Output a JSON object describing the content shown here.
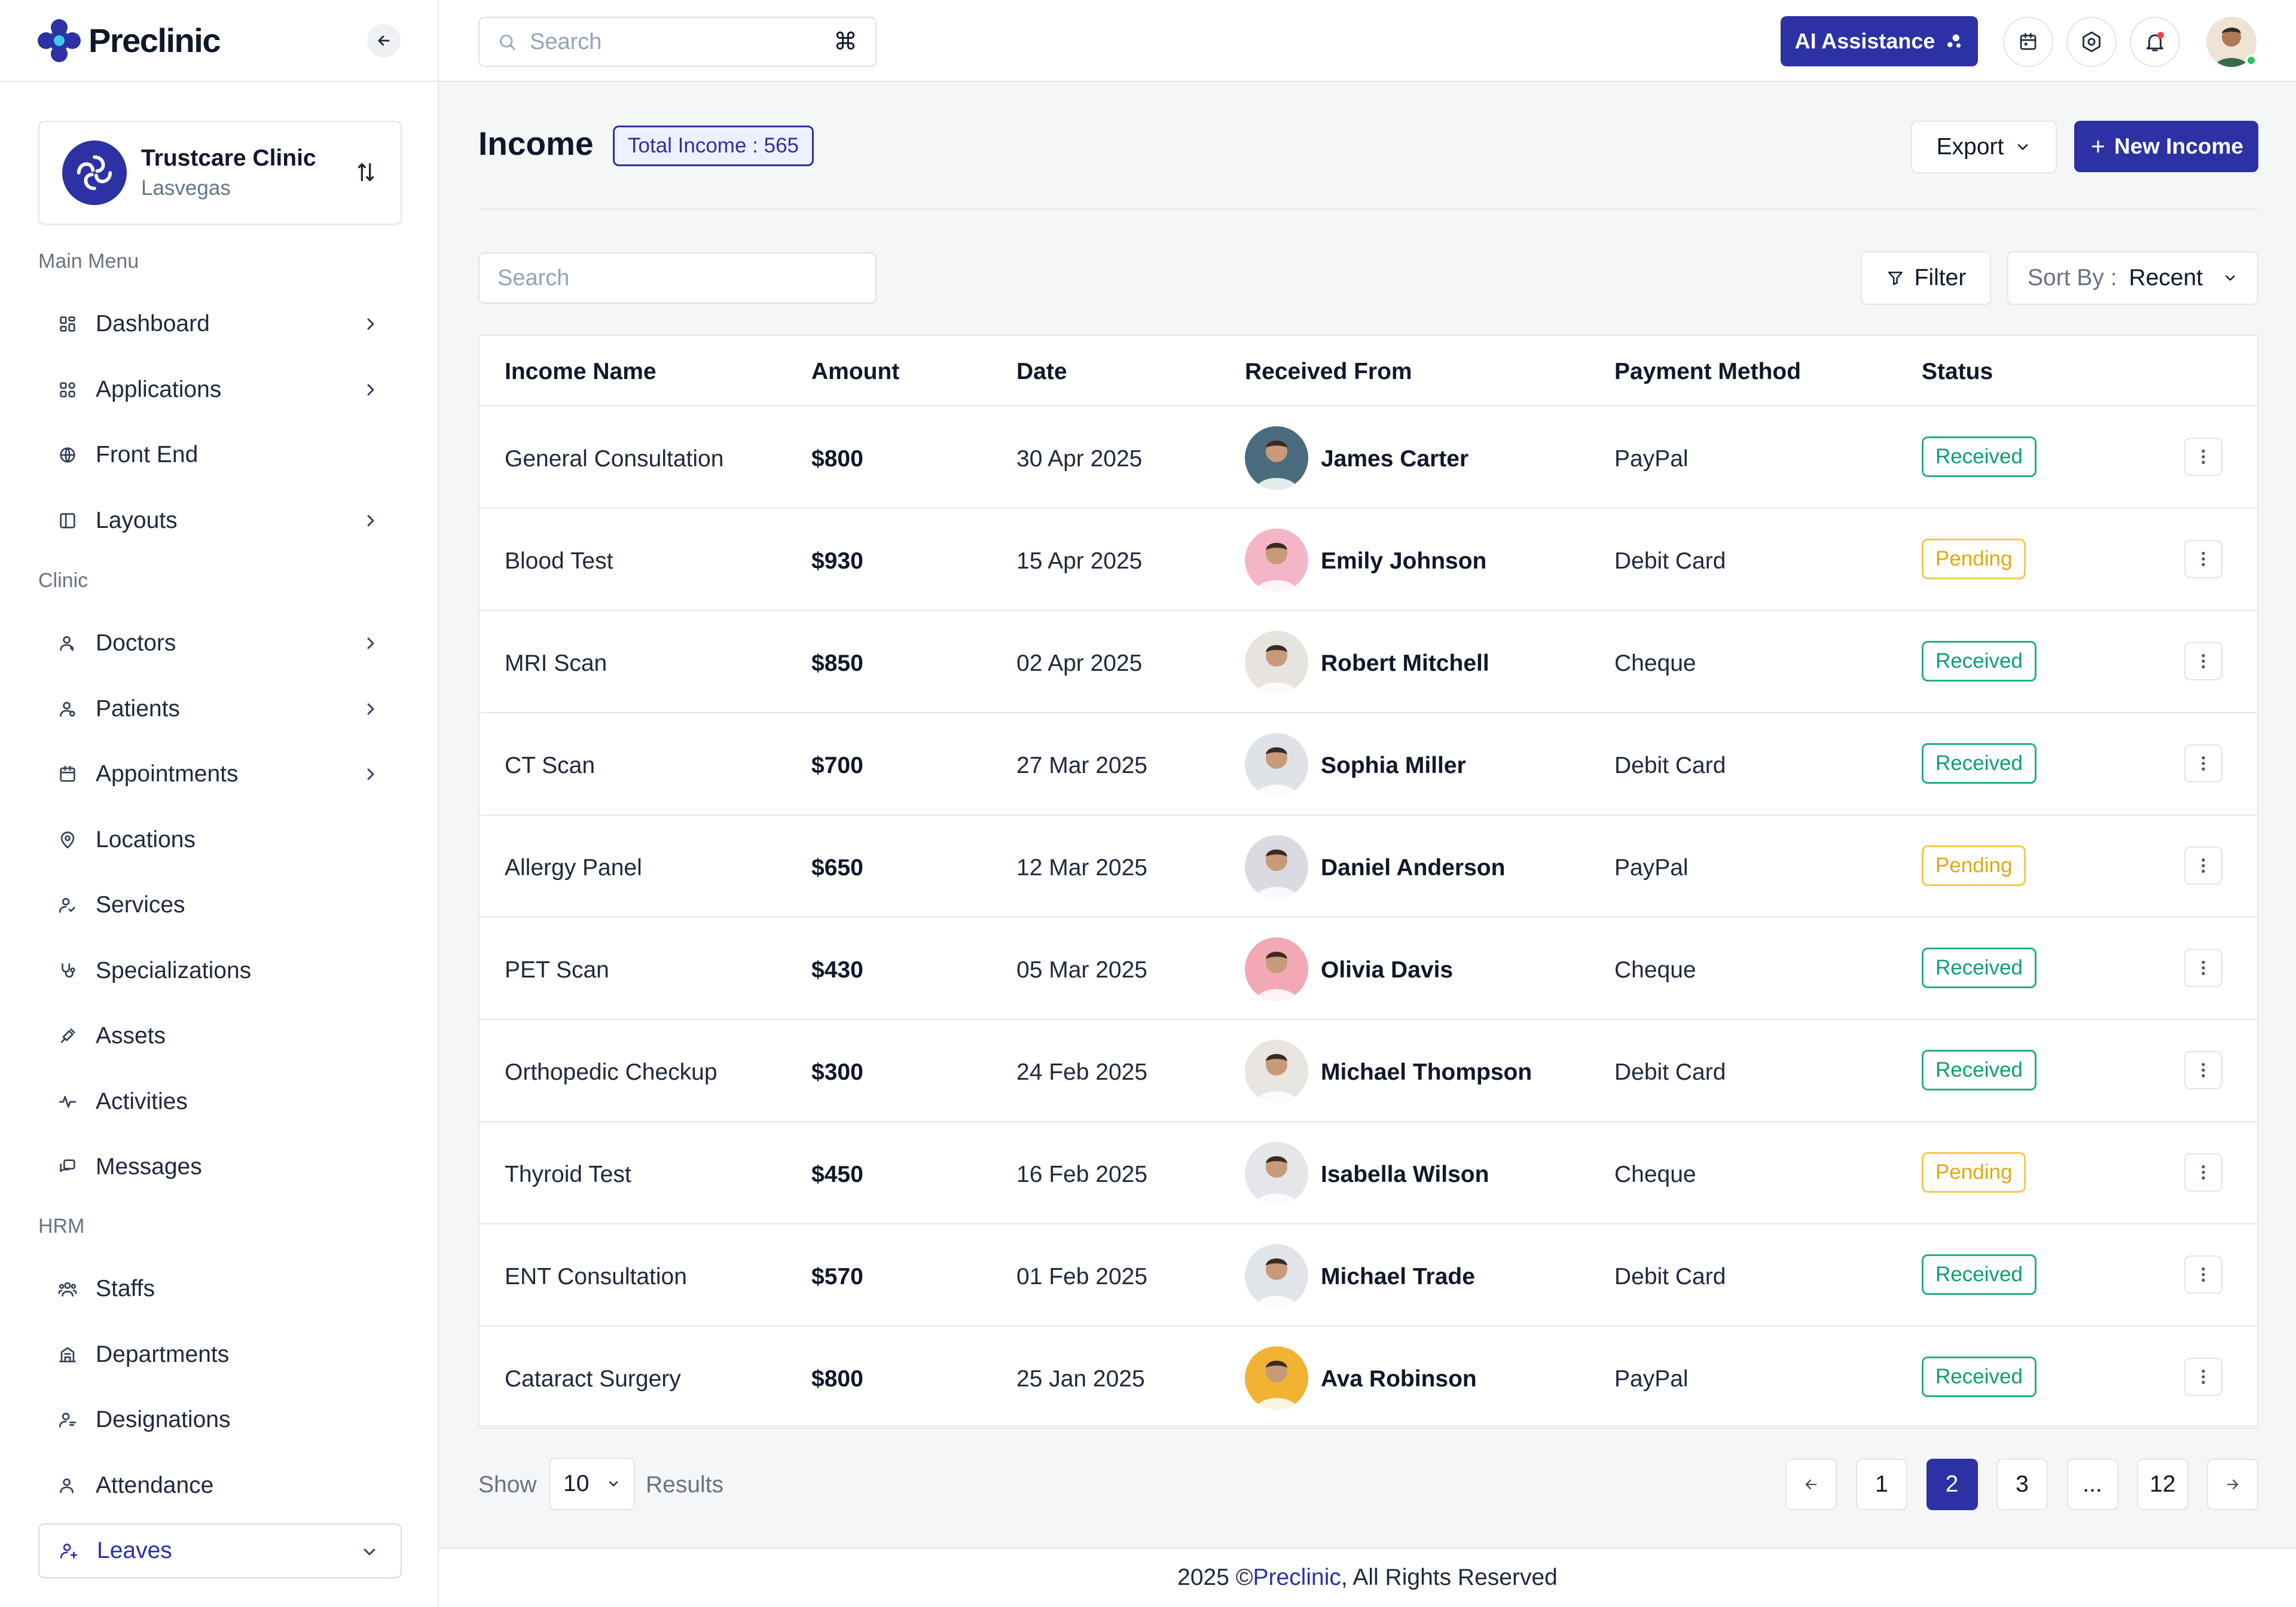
{
  "brand": {
    "name": "Preclinic"
  },
  "clinic": {
    "name": "Trustcare Clinic",
    "location": "Lasvegas"
  },
  "sidebar": {
    "sections": [
      {
        "heading": "Main Menu",
        "items": [
          {
            "label": "Dashboard",
            "icon": "dashboard-icon",
            "chevron": true
          },
          {
            "label": "Applications",
            "icon": "apps-icon",
            "chevron": true
          },
          {
            "label": "Front End",
            "icon": "globe-icon",
            "chevron": false
          },
          {
            "label": "Layouts",
            "icon": "layout-icon",
            "chevron": true
          }
        ]
      },
      {
        "heading": "Clinic",
        "items": [
          {
            "label": "Doctors",
            "icon": "doctor-icon",
            "chevron": true
          },
          {
            "label": "Patients",
            "icon": "patient-icon",
            "chevron": true
          },
          {
            "label": "Appointments",
            "icon": "calendar-icon",
            "chevron": true
          },
          {
            "label": "Locations",
            "icon": "location-pin-icon",
            "chevron": false
          },
          {
            "label": "Services",
            "icon": "service-icon",
            "chevron": false
          },
          {
            "label": "Specializations",
            "icon": "stethoscope-icon",
            "chevron": false
          },
          {
            "label": "Assets",
            "icon": "asset-icon",
            "chevron": false
          },
          {
            "label": "Activities",
            "icon": "activity-icon",
            "chevron": false
          },
          {
            "label": "Messages",
            "icon": "message-icon",
            "chevron": false
          }
        ]
      },
      {
        "heading": "HRM",
        "items": [
          {
            "label": "Staffs",
            "icon": "staff-icon",
            "chevron": false
          },
          {
            "label": "Departments",
            "icon": "building-icon",
            "chevron": false
          },
          {
            "label": "Designations",
            "icon": "designation-icon",
            "chevron": false
          },
          {
            "label": "Attendance",
            "icon": "attendance-icon",
            "chevron": false
          },
          {
            "label": "Leaves",
            "icon": "leaves-icon",
            "chevron": true,
            "active": true
          }
        ]
      }
    ]
  },
  "topbar": {
    "search_placeholder": "Search",
    "shortcut_symbol": "⌘",
    "ai_label": "AI Assistance",
    "icons": [
      "calendar-icon",
      "settings-icon",
      "bell-icon"
    ]
  },
  "page": {
    "title": "Income",
    "total_badge": "Total Income : 565",
    "export_label": "Export",
    "new_label": "New Income",
    "search_placeholder": "Search",
    "filter_label": "Filter",
    "sort_label": "Sort By :",
    "sort_value": "Recent"
  },
  "table": {
    "columns": [
      "Income Name",
      "Amount",
      "Date",
      "Received From",
      "Payment Method",
      "Status"
    ],
    "rows": [
      {
        "name": "General Consultation",
        "amount": "$800",
        "date": "30 Apr 2025",
        "from": "James Carter",
        "method": "PayPal",
        "status": "Received",
        "avatar_color": "#4b6b7e"
      },
      {
        "name": "Blood Test",
        "amount": "$930",
        "date": "15 Apr 2025",
        "from": "Emily Johnson",
        "method": "Debit Card",
        "status": "Pending",
        "avatar_color": "#f4b6c6"
      },
      {
        "name": "MRI Scan",
        "amount": "$850",
        "date": "02 Apr 2025",
        "from": "Robert Mitchell",
        "method": "Cheque",
        "status": "Received",
        "avatar_color": "#e7e3df"
      },
      {
        "name": "CT Scan",
        "amount": "$700",
        "date": "27 Mar 2025",
        "from": "Sophia Miller",
        "method": "Debit Card",
        "status": "Received",
        "avatar_color": "#dfe3e7"
      },
      {
        "name": "Allergy Panel",
        "amount": "$650",
        "date": "12 Mar 2025",
        "from": "Daniel Anderson",
        "method": "PayPal",
        "status": "Pending",
        "avatar_color": "#d9dbe0"
      },
      {
        "name": "PET Scan",
        "amount": "$430",
        "date": "05 Mar 2025",
        "from": "Olivia Davis",
        "method": "Cheque",
        "status": "Received",
        "avatar_color": "#f3a9b5"
      },
      {
        "name": "Orthopedic Checkup",
        "amount": "$300",
        "date": "24 Feb 2025",
        "from": "Michael Thompson",
        "method": "Debit Card",
        "status": "Received",
        "avatar_color": "#e9e5e1"
      },
      {
        "name": "Thyroid Test",
        "amount": "$450",
        "date": "16 Feb 2025",
        "from": "Isabella Wilson",
        "method": "Cheque",
        "status": "Pending",
        "avatar_color": "#e4e6ea"
      },
      {
        "name": "ENT Consultation",
        "amount": "$570",
        "date": "01 Feb 2025",
        "from": "Michael Trade",
        "method": "Debit Card",
        "status": "Received",
        "avatar_color": "#e1e4e8"
      },
      {
        "name": "Cataract Surgery",
        "amount": "$800",
        "date": "25 Jan 2025",
        "from": "Ava Robinson",
        "method": "PayPal",
        "status": "Received",
        "avatar_color": "#f2b233"
      }
    ]
  },
  "pagination": {
    "show_label": "Show",
    "per_page": "10",
    "results_label": "Results",
    "pages": [
      "1",
      "2",
      "3",
      "...",
      "12"
    ],
    "active_page": "2"
  },
  "footer": {
    "prefix": "2025 © ",
    "brand": "Preclinic",
    "suffix": ", All Rights Reserved"
  },
  "colors": {
    "primary": "#2c31a3",
    "received": "#0e9f6e",
    "pending": "#e0a912"
  }
}
